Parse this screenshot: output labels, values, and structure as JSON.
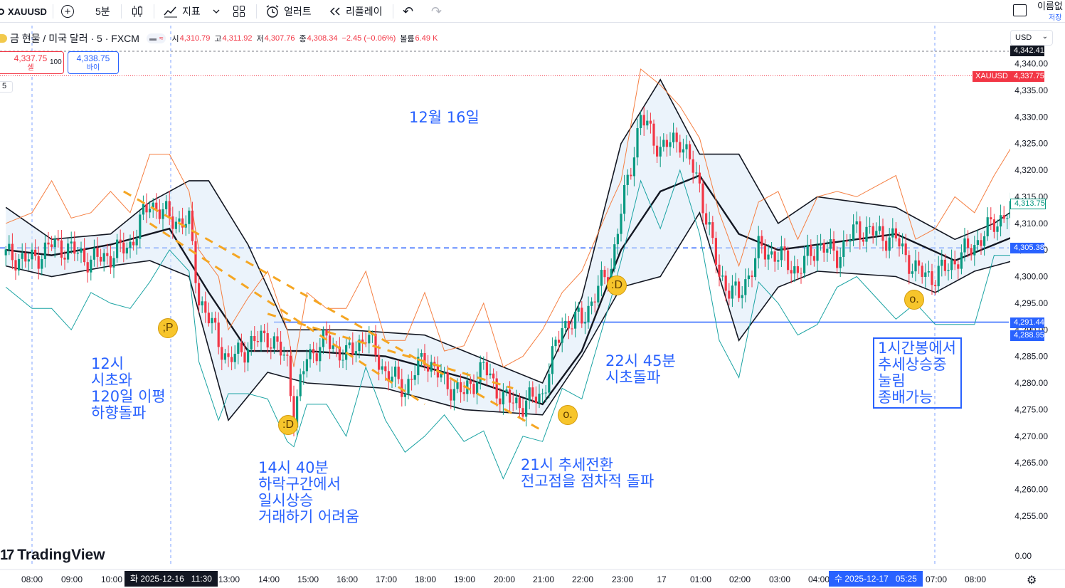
{
  "toolbar": {
    "symbol": "XAUUSD",
    "interval": "5분",
    "indicators": "지표",
    "alert": "얼러트",
    "replay": "리플레이",
    "layout_name": "이름없",
    "save": "저장"
  },
  "legend": {
    "title": "금 현물 / 미국 달러 · 5 · FXCM",
    "open_label": "시",
    "open": "4,310.79",
    "high_label": "고",
    "high": "4,311.92",
    "low_label": "저",
    "low": "4,307.76",
    "close_label": "종",
    "close": "4,308.34",
    "change": "−2.45 (−0.06%)",
    "volume_label": "볼륨",
    "volume": "6.49 K"
  },
  "trade": {
    "sell_price": "4,337.75",
    "sell_label": "셀",
    "qty": "100",
    "buy_price": "4,338.75",
    "buy_label": "바이",
    "collapse": "5"
  },
  "currency": "USD",
  "price_badges": {
    "top": "4,342.41",
    "symbol_tag": "XAUUSD",
    "last": "4,337.75",
    "current": "4,313.75",
    "hline1": "4,305.38",
    "hline2": "4,291.44",
    "hline3": "4,288.95"
  },
  "brand": "TradingView",
  "time_badges": {
    "day1": "화 2025-12-16",
    "day1_time": "11:30",
    "day2": "수 2025-12-17",
    "day2_time": "05:25"
  },
  "annotations": {
    "date": "12월 16일",
    "note_12": "12시\n시초와\n120일 이평\n하향돌파",
    "note_1440": "14시 40분\n하락구간에서\n일시상승\n거래하기 어려움",
    "note_21": "21시 추세전환\n전고점을 점차적 돌파",
    "note_2245": "22시 45분\n시초돌파",
    "note_1h": "1시간봉에서\n추세상승중\n눌림\n종배가능"
  },
  "chart_data": {
    "type": "candlestick",
    "title": "금 현물 / 미국 달러 · 5 · FXCM",
    "x_ticks": [
      "08:00",
      "09:00",
      "10:00",
      "11:00",
      "12:00",
      "13:00",
      "14:00",
      "15:00",
      "16:00",
      "17:00",
      "18:00",
      "19:00",
      "20:00",
      "21:00",
      "22:00",
      "23:00",
      "17",
      "01:00",
      "02:00",
      "03:00",
      "04:00",
      "05:00",
      "06:00",
      "07:00",
      "08:00",
      "09:00"
    ],
    "y_ticks": [
      4340,
      4335,
      4330,
      4325,
      4320,
      4315,
      4310,
      4305,
      4300,
      4295,
      4290,
      4285,
      4280,
      4275,
      4270,
      4265,
      4260,
      4255
    ],
    "y_tick_labels": [
      "4,340.00",
      "4,335.00",
      "4,330.00",
      "4,325.00",
      "4,320.00",
      "4,315.00",
      "4,310.00",
      "4,305.00",
      "4,300.00",
      "4,295.00",
      "4,290.00",
      "4,285.00",
      "4,280.00",
      "4,275.00",
      "4,270.00",
      "4,265.00",
      "4,260.00",
      "4,255.00"
    ],
    "volume_axis_label": "0.00",
    "ylim": [
      4253,
      4345
    ],
    "horizontal_lines": [
      4342.41,
      4337.75,
      4305.38,
      4291.44
    ],
    "close_path": [
      [
        "07:20",
        4304
      ],
      [
        "08:00",
        4303
      ],
      [
        "08:30",
        4306
      ],
      [
        "09:00",
        4305
      ],
      [
        "09:30",
        4303
      ],
      [
        "10:00",
        4304
      ],
      [
        "10:30",
        4306
      ],
      [
        "11:00",
        4314
      ],
      [
        "11:30",
        4311
      ],
      [
        "12:00",
        4310
      ],
      [
        "12:15",
        4296
      ],
      [
        "12:45",
        4288
      ],
      [
        "13:00",
        4284
      ],
      [
        "13:30",
        4287
      ],
      [
        "14:00",
        4289
      ],
      [
        "14:30",
        4284
      ],
      [
        "14:40",
        4274
      ],
      [
        "15:00",
        4285
      ],
      [
        "15:30",
        4288
      ],
      [
        "16:00",
        4285
      ],
      [
        "16:30",
        4289
      ],
      [
        "17:00",
        4282
      ],
      [
        "17:30",
        4279
      ],
      [
        "18:00",
        4285
      ],
      [
        "18:30",
        4280
      ],
      [
        "19:00",
        4278
      ],
      [
        "19:30",
        4283
      ],
      [
        "20:00",
        4277
      ],
      [
        "20:30",
        4276
      ],
      [
        "21:00",
        4278
      ],
      [
        "21:30",
        4291
      ],
      [
        "22:00",
        4292
      ],
      [
        "22:45",
        4302
      ],
      [
        "23:00",
        4312
      ],
      [
        "23:30",
        4330
      ],
      [
        "00:00",
        4324
      ],
      [
        "00:30",
        4326
      ],
      [
        "01:00",
        4317
      ],
      [
        "01:30",
        4300
      ],
      [
        "02:00",
        4296
      ],
      [
        "02:30",
        4305
      ],
      [
        "03:00",
        4304
      ],
      [
        "03:30",
        4301
      ],
      [
        "04:00",
        4306
      ],
      [
        "04:30",
        4304
      ],
      [
        "05:00",
        4309
      ],
      [
        "05:30",
        4308
      ],
      [
        "06:00",
        4307
      ],
      [
        "06:30",
        4301
      ],
      [
        "07:00",
        4300
      ],
      [
        "07:30",
        4303
      ],
      [
        "08:00",
        4306
      ],
      [
        "08:30",
        4310
      ],
      [
        "09:00",
        4313
      ],
      [
        "09:30",
        4311
      ]
    ],
    "bollinger_upper": [
      [
        "07:20",
        4313
      ],
      [
        "08:30",
        4307
      ],
      [
        "10:00",
        4308
      ],
      [
        "11:00",
        4314
      ],
      [
        "12:00",
        4318
      ],
      [
        "12:30",
        4318
      ],
      [
        "13:30",
        4306
      ],
      [
        "14:30",
        4290
      ],
      [
        "16:00",
        4290
      ],
      [
        "18:00",
        4289
      ],
      [
        "20:00",
        4283
      ],
      [
        "21:00",
        4280
      ],
      [
        "22:00",
        4296
      ],
      [
        "23:00",
        4325
      ],
      [
        "00:00",
        4337
      ],
      [
        "01:00",
        4323
      ],
      [
        "02:00",
        4323
      ],
      [
        "03:00",
        4310
      ],
      [
        "04:00",
        4315
      ],
      [
        "06:00",
        4313
      ],
      [
        "07:30",
        4307
      ],
      [
        "08:30",
        4310
      ],
      [
        "09:30",
        4315
      ]
    ],
    "bollinger_lower": [
      [
        "07:20",
        4302
      ],
      [
        "08:30",
        4300
      ],
      [
        "10:00",
        4302
      ],
      [
        "11:00",
        4303
      ],
      [
        "12:00",
        4300
      ],
      [
        "13:00",
        4273
      ],
      [
        "14:00",
        4282
      ],
      [
        "15:00",
        4280
      ],
      [
        "17:00",
        4279
      ],
      [
        "19:00",
        4275
      ],
      [
        "21:00",
        4274
      ],
      [
        "22:00",
        4285
      ],
      [
        "23:00",
        4298
      ],
      [
        "00:00",
        4300
      ],
      [
        "01:00",
        4312
      ],
      [
        "02:00",
        4288
      ],
      [
        "03:00",
        4298
      ],
      [
        "04:00",
        4301
      ],
      [
        "06:00",
        4300
      ],
      [
        "07:00",
        4297
      ],
      [
        "08:00",
        4301
      ],
      [
        "09:30",
        4304
      ]
    ],
    "moving_average": [
      [
        "07:20",
        4305
      ],
      [
        "08:30",
        4304
      ],
      [
        "10:00",
        4306
      ],
      [
        "11:30",
        4309
      ],
      [
        "12:30",
        4297
      ],
      [
        "13:30",
        4286
      ],
      [
        "15:00",
        4286
      ],
      [
        "17:00",
        4285
      ],
      [
        "19:00",
        4281
      ],
      [
        "21:00",
        4276
      ],
      [
        "22:00",
        4286
      ],
      [
        "23:00",
        4305
      ],
      [
        "00:00",
        4316
      ],
      [
        "01:00",
        4319
      ],
      [
        "02:00",
        4308
      ],
      [
        "03:00",
        4305
      ],
      [
        "04:00",
        4306
      ],
      [
        "06:00",
        4308
      ],
      [
        "07:30",
        4303
      ],
      [
        "09:30",
        4309
      ]
    ],
    "trend_lines": [
      {
        "style": "dashed",
        "color": "#f5a623",
        "from": [
          "10:20",
          4316
        ],
        "to": [
          "21:00",
          4271
        ]
      },
      {
        "style": "dashed",
        "color": "#f5a623",
        "from": [
          "11:00",
          4310
        ],
        "to": [
          "18:00",
          4276
        ]
      },
      {
        "style": "dashed",
        "color": "#f5a623",
        "from": [
          "14:00",
          4293
        ],
        "to": [
          "20:15",
          4279
        ]
      }
    ]
  },
  "colors": {
    "up": "#089981",
    "down": "#f23645",
    "accent": "#2962ff",
    "trend": "#f5a623",
    "band": "#131722"
  }
}
